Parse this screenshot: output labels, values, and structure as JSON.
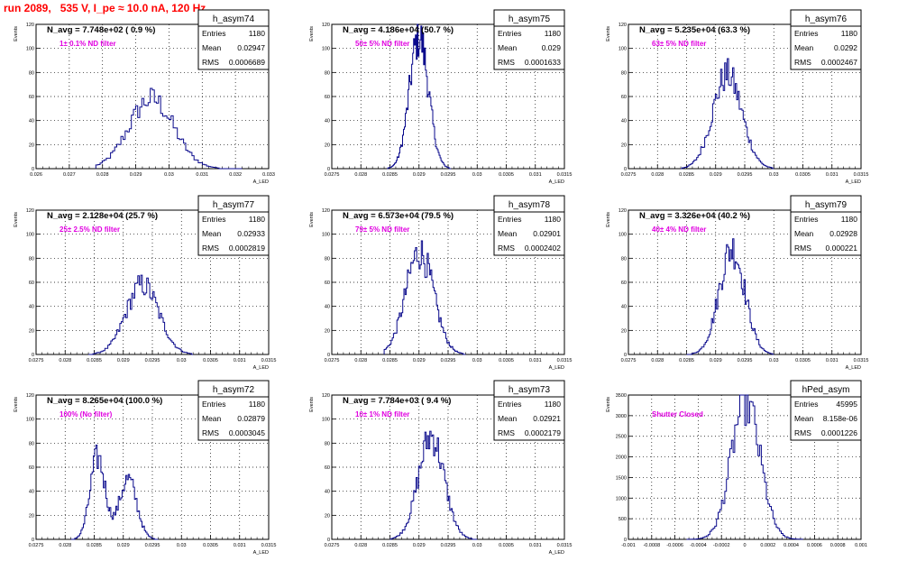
{
  "page": {
    "header": "run 2089,   535 V, I_pe ≈ 10.0 nA, 120 Hz",
    "stat_labels": [
      "Entries",
      "Mean",
      "RMS"
    ]
  },
  "colors": {
    "histogram": "#0a0a8c",
    "filter_label": "#e000e0",
    "header": "#ff0000",
    "grid": "#000000"
  },
  "chart_data": [
    {
      "type": "histogram",
      "hist_name": "h_asym74",
      "n_avg": "N_avg = 7.748e+02 ( 0.9 %)",
      "filter": "1± 0.1% ND filter",
      "stats": {
        "Entries": "1180",
        "Mean": "0.02947",
        "RMS": "0.0006689"
      },
      "ylabel": "Events",
      "xlabel": "A_LED",
      "xlim": [
        0.026,
        0.033
      ],
      "ylim": [
        0,
        120
      ],
      "xticks": [
        "0.026",
        "0.027",
        "0.028",
        "0.029",
        "0.03",
        "0.031",
        "0.032",
        "0.033"
      ],
      "yticks": [
        "0",
        "20",
        "40",
        "60",
        "80",
        "100",
        "120"
      ],
      "peaks": [
        {
          "mu": 0.02947,
          "sigma": 0.00067,
          "amp": 58
        }
      ],
      "xrange": [
        0.0278,
        0.0322
      ]
    },
    {
      "type": "histogram",
      "hist_name": "h_asym75",
      "n_avg": "N_avg = 4.186e+04 (50.7 %)",
      "filter": "50± 5% ND filter",
      "stats": {
        "Entries": "1180",
        "Mean": "0.029",
        "RMS": "0.0001633"
      },
      "ylabel": "Events",
      "xlabel": "A_LED",
      "xlim": [
        0.0275,
        0.0315
      ],
      "ylim": [
        0,
        120
      ],
      "xticks": [
        "0.0275",
        "0.028",
        "0.0285",
        "0.029",
        "0.0295",
        "0.03",
        "0.0305",
        "0.031",
        "0.0315"
      ],
      "yticks": [
        "0",
        "20",
        "40",
        "60",
        "80",
        "100",
        "120"
      ],
      "peaks": [
        {
          "mu": 0.029,
          "sigma": 0.000163,
          "amp": 110
        }
      ],
      "xrange": [
        0.02845,
        0.02955
      ]
    },
    {
      "type": "histogram",
      "hist_name": "h_asym76",
      "n_avg": "N_avg = 5.235e+04 (63.3 %)",
      "filter": "63± 5% ND filter",
      "stats": {
        "Entries": "1180",
        "Mean": "0.0292",
        "RMS": "0.0002467"
      },
      "ylabel": "Events",
      "xlabel": "A_LED",
      "xlim": [
        0.0275,
        0.0315
      ],
      "ylim": [
        0,
        120
      ],
      "xticks": [
        "0.0275",
        "0.028",
        "0.0285",
        "0.029",
        "0.0295",
        "0.03",
        "0.0305",
        "0.031",
        "0.0315"
      ],
      "yticks": [
        "0",
        "20",
        "40",
        "60",
        "80",
        "100",
        "120"
      ],
      "peaks": [
        {
          "mu": 0.0292,
          "sigma": 0.00025,
          "amp": 78
        }
      ],
      "xrange": [
        0.0284,
        0.03
      ]
    },
    {
      "type": "histogram",
      "hist_name": "h_asym77",
      "n_avg": "N_avg = 2.128e+04 (25.7 %)",
      "filter": "25± 2.5% ND filter",
      "stats": {
        "Entries": "1180",
        "Mean": "0.02933",
        "RMS": "0.0002819"
      },
      "ylabel": "Events",
      "xlabel": "A_LED",
      "xlim": [
        0.0275,
        0.0315
      ],
      "ylim": [
        0,
        120
      ],
      "xticks": [
        "0.0275",
        "0.028",
        "0.0285",
        "0.029",
        "0.0295",
        "0.03",
        "0.0305",
        "0.031",
        "0.0315"
      ],
      "yticks": [
        "0",
        "20",
        "40",
        "60",
        "80",
        "100",
        "120"
      ],
      "peaks": [
        {
          "mu": 0.02933,
          "sigma": 0.00028,
          "amp": 58
        }
      ],
      "xrange": [
        0.0284,
        0.0302
      ]
    },
    {
      "type": "histogram",
      "hist_name": "h_asym78",
      "n_avg": "N_avg = 6.573e+04 (79.5 %)",
      "filter": "79± 5% ND filter",
      "stats": {
        "Entries": "1180",
        "Mean": "0.02901",
        "RMS": "0.0002402"
      },
      "ylabel": "Events",
      "xlabel": "A_LED",
      "xlim": [
        0.0275,
        0.0315
      ],
      "ylim": [
        0,
        120
      ],
      "xticks": [
        "0.0275",
        "0.028",
        "0.0285",
        "0.029",
        "0.0295",
        "0.03",
        "0.0305",
        "0.031",
        "0.0315"
      ],
      "yticks": [
        "0",
        "20",
        "40",
        "60",
        "80",
        "100",
        "120"
      ],
      "peaks": [
        {
          "mu": 0.02901,
          "sigma": 0.00024,
          "amp": 85
        }
      ],
      "xrange": [
        0.0284,
        0.0298
      ]
    },
    {
      "type": "histogram",
      "hist_name": "h_asym79",
      "n_avg": "N_avg = 3.326e+04 (40.2 %)",
      "filter": "40± 4% ND filter",
      "stats": {
        "Entries": "1180",
        "Mean": "0.02928",
        "RMS": "0.000221"
      },
      "ylabel": "Events",
      "xlabel": "A_LED",
      "xlim": [
        0.0275,
        0.0315
      ],
      "ylim": [
        0,
        120
      ],
      "xticks": [
        "0.0275",
        "0.028",
        "0.0285",
        "0.029",
        "0.0295",
        "0.03",
        "0.0305",
        "0.031",
        "0.0315"
      ],
      "yticks": [
        "0",
        "20",
        "40",
        "60",
        "80",
        "100",
        "120"
      ],
      "peaks": [
        {
          "mu": 0.02928,
          "sigma": 0.00022,
          "amp": 88
        }
      ],
      "xrange": [
        0.0285,
        0.03
      ]
    },
    {
      "type": "histogram",
      "hist_name": "h_asym72",
      "n_avg": "N_avg = 8.265e+04 (100.0 %)",
      "filter": "100% (No filter)",
      "stats": {
        "Entries": "1180",
        "Mean": "0.02879",
        "RMS": "0.0003045"
      },
      "ylabel": "Events",
      "xlabel": "A_LED",
      "xlim": [
        0.0275,
        0.0315
      ],
      "ylim": [
        0,
        120
      ],
      "xticks": [
        "0.0275",
        "0.028",
        "0.0285",
        "0.029",
        "0.0295",
        "0.03",
        "0.0305",
        "0.031",
        "0.0315"
      ],
      "yticks": [
        "0",
        "20",
        "40",
        "60",
        "80",
        "100",
        "120"
      ],
      "peaks": [
        {
          "mu": 0.02856,
          "sigma": 0.00013,
          "amp": 68
        },
        {
          "mu": 0.02908,
          "sigma": 0.00015,
          "amp": 50
        }
      ],
      "xrange": [
        0.0281,
        0.0296
      ]
    },
    {
      "type": "histogram",
      "hist_name": "h_asym73",
      "n_avg": "N_avg = 7.784e+03 ( 9.4 %)",
      "filter": "10± 1% ND filter",
      "stats": {
        "Entries": "1180",
        "Mean": "0.02921",
        "RMS": "0.0002179"
      },
      "ylabel": "Events",
      "xlabel": "A_LED",
      "xlim": [
        0.0275,
        0.0315
      ],
      "ylim": [
        0,
        120
      ],
      "xticks": [
        "0.0275",
        "0.028",
        "0.0285",
        "0.029",
        "0.0295",
        "0.03",
        "0.0305",
        "0.031",
        "0.0315"
      ],
      "yticks": [
        "0",
        "20",
        "40",
        "60",
        "80",
        "100",
        "120"
      ],
      "peaks": [
        {
          "mu": 0.02921,
          "sigma": 0.00022,
          "amp": 86
        }
      ],
      "xrange": [
        0.0285,
        0.03
      ]
    },
    {
      "type": "histogram",
      "hist_name": "hPed_asym",
      "n_avg": "",
      "filter": "Shutter Closed",
      "stats": {
        "Entries": "45995",
        "Mean": "8.158e-06",
        "RMS": "0.0001226"
      },
      "ylabel": "Events",
      "xlabel": "",
      "xlim": [
        -0.001,
        0.001
      ],
      "ylim": [
        0,
        3500
      ],
      "xticks": [
        "-0.001",
        "-0.0008",
        "-0.0006",
        "-0.0004",
        "-0.0002",
        "0",
        "0.0002",
        "0.0004",
        "0.0006",
        "0.0008",
        "0.001"
      ],
      "yticks": [
        "0",
        "500",
        "1000",
        "1500",
        "2000",
        "2500",
        "3000",
        "3500"
      ],
      "peaks": [
        {
          "mu": 8.2e-06,
          "sigma": 0.000123,
          "amp": 3350
        }
      ],
      "xrange": [
        -0.0005,
        0.0005
      ]
    }
  ]
}
